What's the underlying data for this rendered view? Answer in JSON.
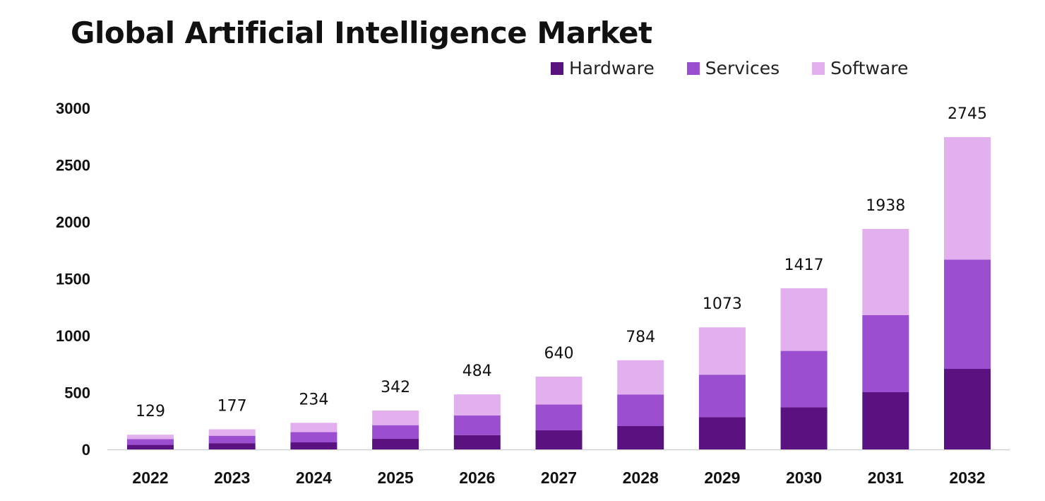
{
  "chart_data": {
    "type": "bar",
    "stacked": true,
    "title": "Global Artificial Intelligence Market",
    "categories": [
      "2022",
      "2023",
      "2024",
      "2025",
      "2026",
      "2027",
      "2028",
      "2029",
      "2030",
      "2031",
      "2032"
    ],
    "series": [
      {
        "name": "Hardware",
        "color": "#5a1280",
        "values": [
          40,
          55,
          62,
          93,
          126,
          168,
          205,
          283,
          370,
          503,
          708
        ]
      },
      {
        "name": "Services",
        "color": "#9b4fd0",
        "values": [
          50,
          65,
          90,
          120,
          172,
          227,
          278,
          374,
          496,
          677,
          960
        ]
      },
      {
        "name": "Software",
        "color": "#e3b0ef",
        "values": [
          39,
          57,
          82,
          129,
          186,
          245,
          301,
          416,
          551,
          758,
          1077
        ]
      }
    ],
    "totals": [
      129,
      177,
      234,
      342,
      484,
      640,
      784,
      1073,
      1417,
      1938,
      2745
    ],
    "yticks": [
      0,
      500,
      1000,
      1500,
      2000,
      2500,
      3000
    ],
    "ylim": [
      0,
      3000
    ],
    "legend_position": "top-right",
    "grid": false
  }
}
